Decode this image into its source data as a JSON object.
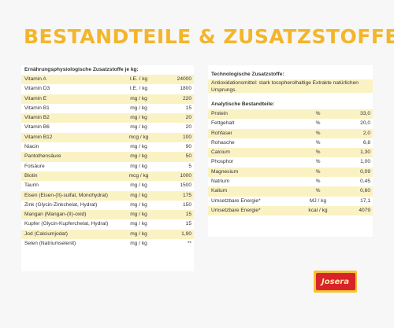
{
  "title": "BESTANDTEILE & ZUSATZSTOFFE",
  "nutrition_additives": {
    "header": "Ernährungsphysiologische Zusatzstoffe je kg:",
    "rows": [
      {
        "name": "Vitamin A",
        "unit": "I.E. / kg",
        "value": "24000"
      },
      {
        "name": "Vitamin D3",
        "unit": "I.E. / kg",
        "value": "1800"
      },
      {
        "name": "Vitamin E",
        "unit": "mg / kg",
        "value": "220"
      },
      {
        "name": "Vitamin B1",
        "unit": "mg / kg",
        "value": "15"
      },
      {
        "name": "Vitamin B2",
        "unit": "mg / kg",
        "value": "20"
      },
      {
        "name": "Vitamin B6",
        "unit": "mg / kg",
        "value": "20"
      },
      {
        "name": "Vitamin B12",
        "unit": "mcg / kg",
        "value": "100"
      },
      {
        "name": "Niacin",
        "unit": "mg / kg",
        "value": "90"
      },
      {
        "name": "Pantothensäure",
        "unit": "mg / kg",
        "value": "50"
      },
      {
        "name": "Folsäure",
        "unit": "mg / kg",
        "value": "5"
      },
      {
        "name": "Biotin",
        "unit": "mcg / kg",
        "value": "1000"
      },
      {
        "name": "Taurin",
        "unit": "mg / kg",
        "value": "1500"
      },
      {
        "name": "Eisen (Eisen-(II)-sulfat, Monohydrat)",
        "unit": "mg / kg",
        "value": "175"
      },
      {
        "name": "Zink (Glycin-Zinkchelat, Hydrat)",
        "unit": "mg / kg",
        "value": "150"
      },
      {
        "name": "Mangan (Mangan-(II)-oxid)",
        "unit": "mg / kg",
        "value": "15"
      },
      {
        "name": "Kupfer (Glycin-Kupferchelat, Hydrat)",
        "unit": "mg / kg",
        "value": "15"
      },
      {
        "name": "Jod (Calciumjodat)",
        "unit": "mg / kg",
        "value": "1,90"
      },
      {
        "name": "Selen (Natriumselenit)",
        "unit": "mg / kg",
        "value": "**"
      }
    ]
  },
  "technological_additives": {
    "header": "Technologische Zusatzstoffe:",
    "text": "Antioxidationsmittel: stark tocopherolhaltige Extrakte natürlichen Ursprungs."
  },
  "analytical_constituents": {
    "header": "Analytische Bestandteile:",
    "rows": [
      {
        "name": "Protein",
        "unit": "%",
        "value": "33,0"
      },
      {
        "name": "Fettgehalt",
        "unit": "%",
        "value": "20,0"
      },
      {
        "name": "Rohfaser",
        "unit": "%",
        "value": "2,0"
      },
      {
        "name": "Rohasche",
        "unit": "%",
        "value": "6,8"
      },
      {
        "name": "Calcium",
        "unit": "%",
        "value": "1,30"
      },
      {
        "name": "Phosphor",
        "unit": "%",
        "value": "1,00"
      },
      {
        "name": "Magnesium",
        "unit": "%",
        "value": "0,09"
      },
      {
        "name": "Natrium",
        "unit": "%",
        "value": "0,45"
      },
      {
        "name": "Kalium",
        "unit": "%",
        "value": "0,60"
      },
      {
        "name": "Umsetzbare Energie*",
        "unit": "MJ / kg",
        "value": "17,1"
      },
      {
        "name": "Umsetzbare Energie*",
        "unit": "kcal / kg",
        "value": "4079"
      }
    ]
  },
  "logo": {
    "text": "Josera"
  },
  "colors": {
    "accent": "#f3b52b",
    "row_highlight": "#fbf2c4",
    "logo_red": "#d8232a"
  }
}
